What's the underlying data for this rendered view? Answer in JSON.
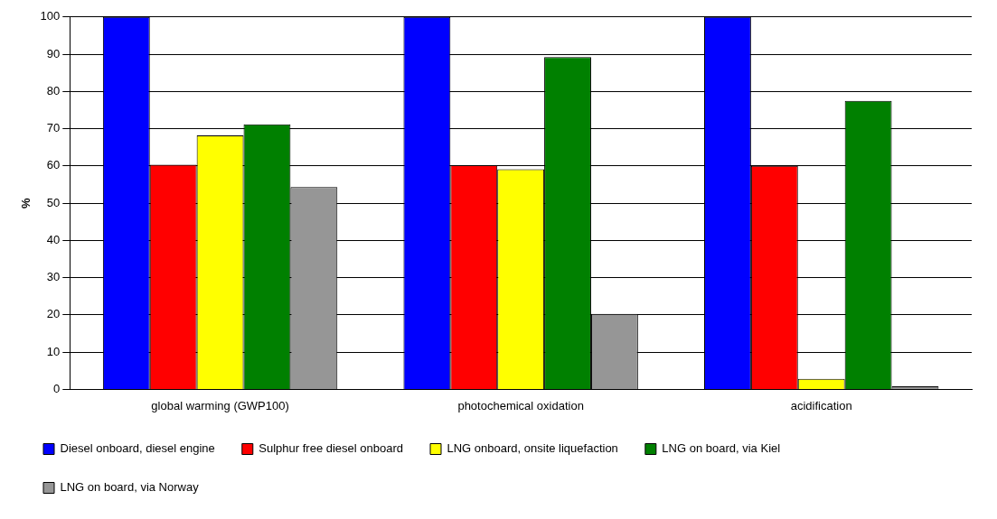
{
  "chart_data": {
    "type": "bar",
    "ylabel": "%",
    "categories": [
      "global warming (GWP100)",
      "photochemical oxidation",
      "acidification"
    ],
    "series": [
      {
        "name": "Diesel onboard, diesel engine",
        "color": "#0000ff",
        "values": [
          100,
          100,
          100
        ]
      },
      {
        "name": "Sulphur free diesel onboard",
        "color": "#ff0000",
        "values": [
          60.3,
          60.2,
          60
        ]
      },
      {
        "name": "LNG onboard, onsite liquefaction",
        "color": "#ffff00",
        "values": [
          68.2,
          59.1,
          2.8
        ]
      },
      {
        "name": "LNG on board, via Kiel",
        "color": "#008000",
        "values": [
          71.2,
          89.2,
          77.5
        ]
      },
      {
        "name": "LNG on board, via Norway",
        "color": "#969696",
        "values": [
          54.3,
          20.3,
          0.8
        ]
      }
    ],
    "ylim": [
      0,
      100
    ],
    "yticks": [
      0,
      10,
      20,
      30,
      40,
      50,
      60,
      70,
      80,
      90,
      100
    ],
    "grid": "y",
    "legend": "bottom"
  }
}
